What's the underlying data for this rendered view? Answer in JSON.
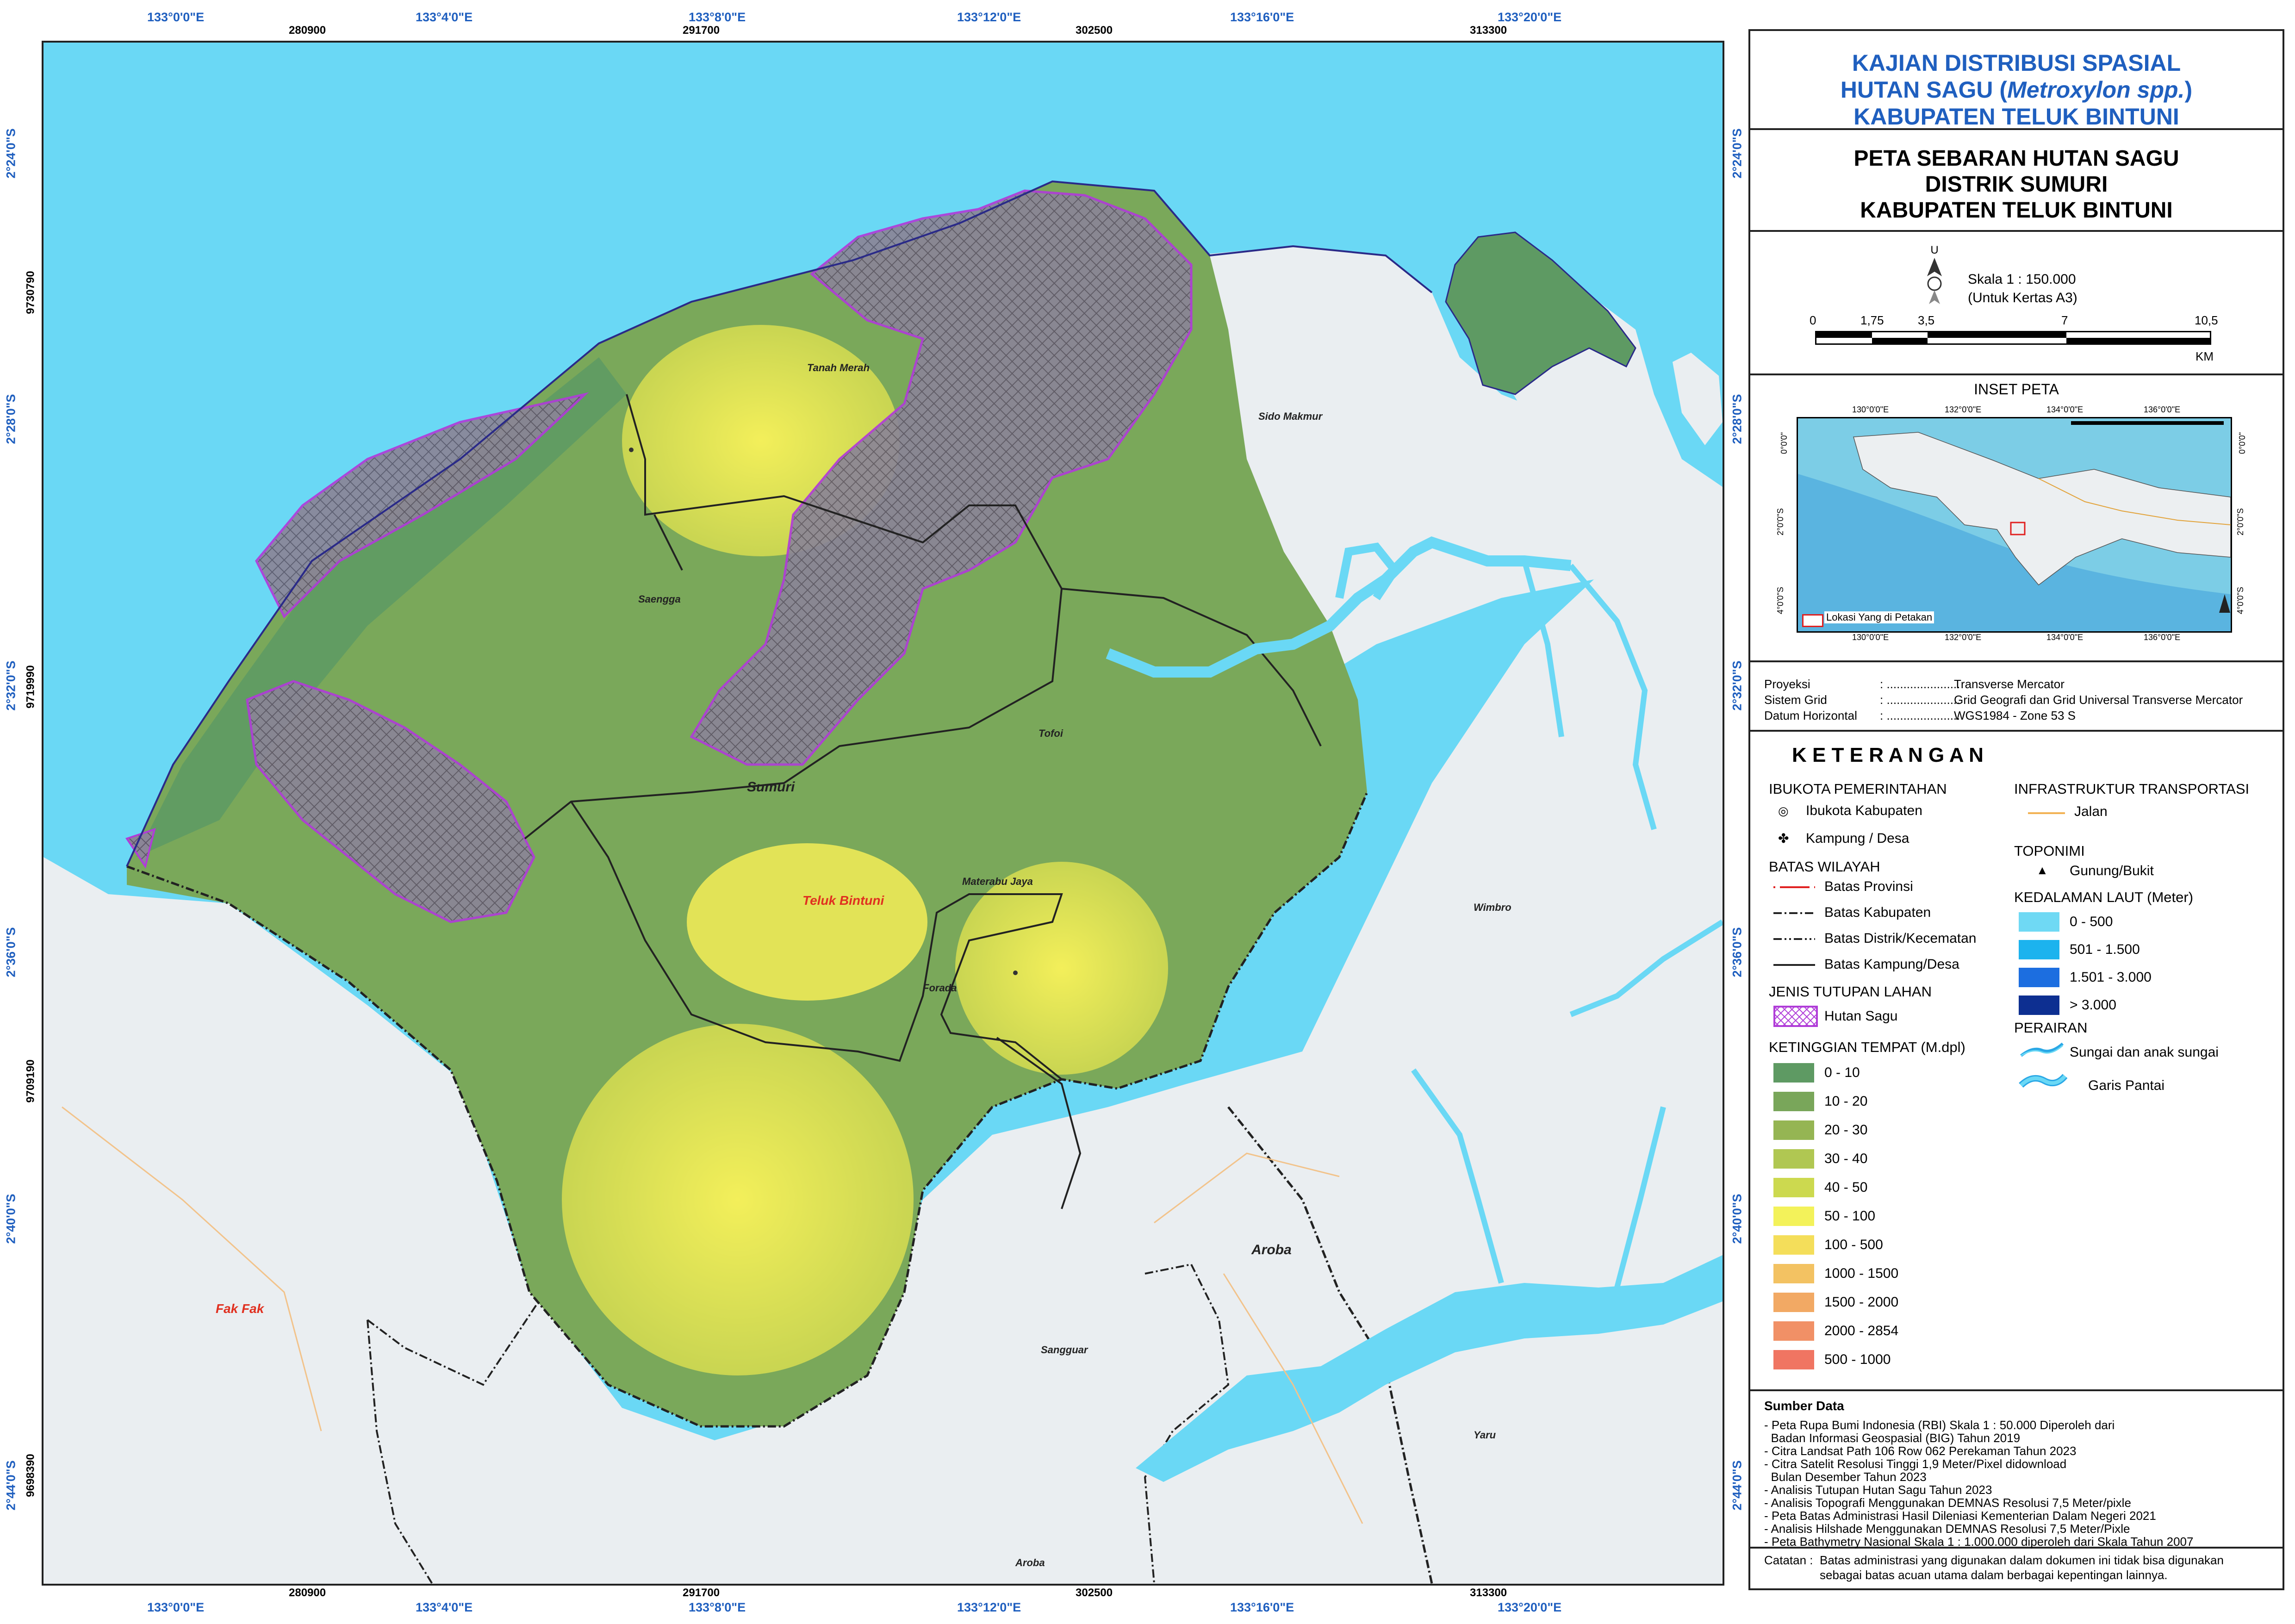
{
  "map": {
    "top_lon_labels": [
      "133°0'0\"E",
      "133°4'0\"E",
      "133°8'0\"E",
      "133°12'0\"E",
      "133°16'0\"E",
      "133°20'0\"E"
    ],
    "top_utm_labels": [
      "280900",
      "291700",
      "302500",
      "313300"
    ],
    "left_lat_labels": [
      "2°24'0\"S",
      "2°28'0\"S",
      "2°32'0\"S",
      "2°36'0\"S",
      "2°40'0\"S",
      "2°44'0\"S"
    ],
    "left_utm_labels": [
      "9730790",
      "9719990",
      "9709190",
      "9698390"
    ],
    "places": {
      "tanah_merah": "Tanah Merah",
      "sido_makmur": "Sido Makmur",
      "saengga": "Saengga",
      "tofoi": "Tofoi",
      "sumuri": "Sumuri",
      "teluk_bintuni": "Teluk Bintuni",
      "materabu_jaya": "Materabu Jaya",
      "forada": "Forada",
      "wimbro": "Wimbro",
      "aroba": "Aroba",
      "fak_fak": "Fak Fak",
      "sangguar": "Sangguar",
      "yaru": "Yaru",
      "aroba_south": "Aroba"
    }
  },
  "header": {
    "study_title_1": "KAJIAN DISTRIBUSI SPASIAL",
    "study_title_2a": "HUTAN SAGU (",
    "study_title_2b": "Metroxylon spp.",
    "study_title_2c": ")",
    "study_title_3": "KABUPATEN TELUK BINTUNI",
    "map_title_1": "PETA SEBARAN HUTAN SAGU",
    "map_title_2": "DISTRIK SUMURI",
    "map_title_3": "KABUPATEN TELUK BINTUNI"
  },
  "scale": {
    "north": "U",
    "scale_text": "Skala 1 : 150.000",
    "paper_text": "(Untuk Kertas A3)",
    "ticks": [
      "0",
      "1,75",
      "3,5",
      "7",
      "10,5"
    ],
    "unit": "KM"
  },
  "inset": {
    "title": "INSET PETA",
    "top_labels": [
      "130°0'0\"E",
      "132°0'0\"E",
      "134°0'0\"E",
      "136°0'0\"E"
    ],
    "bottom_labels": [
      "130°0'0\"E",
      "132°0'0\"E",
      "134°0'0\"E",
      "136°0'0\"E"
    ],
    "left_labels": [
      "0°0'0\"",
      "2°0'0\"S",
      "4°0'0\"S"
    ],
    "right_labels": [
      "0°0'0\"",
      "2°0'0\"S",
      "4°0'0\"S"
    ],
    "location_label": "Lokasi Yang di Petakan"
  },
  "projection": {
    "rows": [
      {
        "label": "Proyeksi",
        "dots": ": ......................",
        "value": "Transverse Mercator"
      },
      {
        "label": "Sistem Grid",
        "dots": ": ......................",
        "value": "Grid Geografi dan Grid Universal Transverse Mercator"
      },
      {
        "label": "Datum Horizontal",
        "dots": ": ......................",
        "value": "WGS1984 - Zone 53 S"
      }
    ]
  },
  "legend": {
    "title": "K E T E R A N G A N",
    "ibukota_header": "IBUKOTA PEMERINTAHAN",
    "ibukota_kab": "Ibukota Kabupaten",
    "kampung": "Kampung / Desa",
    "batas_header": "BATAS WILAYAH",
    "batas_prov": "Batas Provinsi",
    "batas_kab": "Batas Kabupaten",
    "batas_dist": "Batas Distrik/Kecematan",
    "batas_kamp": "Batas Kampung/Desa",
    "tutupan_header": "JENIS TUTUPAN LAHAN",
    "hutan_sagu": "Hutan Sagu",
    "ketinggian_header": "KETINGGIAN TEMPAT (M.dpl)",
    "elevation": [
      {
        "label": "0 - 10",
        "color": "#5e9a63"
      },
      {
        "label": "10 - 20",
        "color": "#79a65a"
      },
      {
        "label": "20 - 30",
        "color": "#95b553"
      },
      {
        "label": "30 - 40",
        "color": "#b0c752"
      },
      {
        "label": "40 - 50",
        "color": "#ccd94f"
      },
      {
        "label": "50 - 100",
        "color": "#f3f25a"
      },
      {
        "label": "100 - 500",
        "color": "#f4de5a"
      },
      {
        "label": "1000 - 1500",
        "color": "#f3c262"
      },
      {
        "label": "1500 - 2000",
        "color": "#f2a964"
      },
      {
        "label": "2000 - 2854",
        "color": "#f19066"
      },
      {
        "label": "500 - 1000",
        "color": "#f07562"
      }
    ],
    "infra_header": "INFRASTRUKTUR TRANSPORTASI",
    "jalan": "Jalan",
    "toponimi_header": "TOPONIMI",
    "gunung": "Gunung/Bukit",
    "laut_header": "KEDALAMAN LAUT (Meter)",
    "depth": [
      {
        "label": "0 - 500",
        "color": "#6fd9f4"
      },
      {
        "label": "501 - 1.500",
        "color": "#1cb3ee"
      },
      {
        "label": "1.501 - 3.000",
        "color": "#1c6ee0"
      },
      {
        "label": "> 3.000",
        "color": "#0d2f91"
      }
    ],
    "perairan_header": "PERAIRAN",
    "sungai": "Sungai dan anak sungai",
    "garis_pantai": "Garis Pantai"
  },
  "sources": {
    "title": "Sumber Data",
    "lines": [
      "- Peta Rupa Bumi Indonesia (RBI) Skala 1 : 50.000 Diperoleh dari",
      "  Badan Informasi Geospasial (BIG) Tahun 2019",
      "- Citra Landsat Path 106 Row 062 Perekaman Tahun 2023",
      "- Citra Satelit Resolusi Tinggi 1,9 Meter/Pixel didownload",
      "  Bulan Desember Tahun 2023",
      "- Analisis Tutupan Hutan Sagu Tahun 2023",
      "- Analisis Topografi Menggunakan DEMNAS Resolusi 7,5 Meter/pixle",
      "- Peta Batas Administrasi Hasil Dileniasi Kementerian Dalam Negeri 2021",
      "- Analisis Hilshade Menggunakan DEMNAS Resolusi 7,5 Meter/Pixle",
      "- Peta Bathymetry Nasional Skala 1 : 1.000.000 diperoleh dari Skala Tahun 2007"
    ],
    "note_label": "Catatan :",
    "note_1": "Batas administrasi yang digunakan dalam dokumen ini tidak bisa digunakan",
    "note_2": "sebagai batas acuan utama dalam berbagai kepentingan lainnya."
  },
  "colors": {
    "sea": "#6ad8f5",
    "land_outside": "#eef1f3",
    "sagu_outline": "#b03cd8",
    "title_blue": "#1f5fbf"
  }
}
